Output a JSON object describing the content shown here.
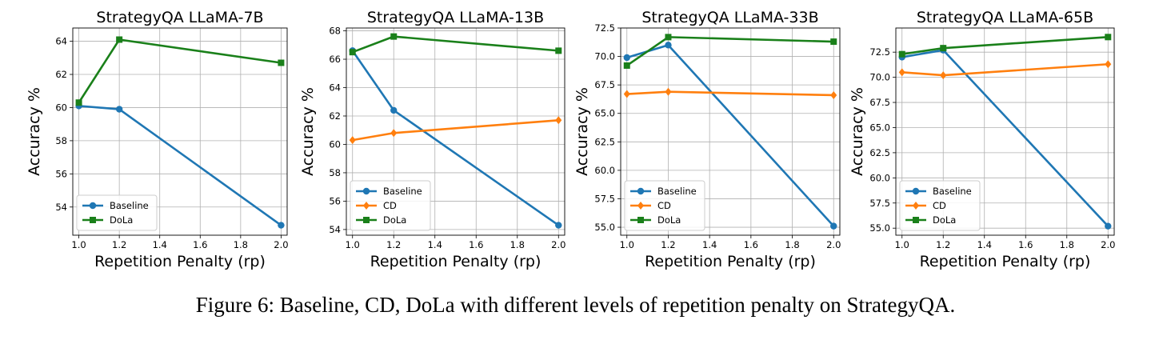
{
  "caption": "Figure 6: Baseline, CD, DoLa with different levels of repetition penalty on StrategyQA.",
  "colors": {
    "Baseline": "#1f77b4",
    "CD": "#ff7f0e",
    "DoLa": "#1a801a"
  },
  "markers": {
    "Baseline": "circle",
    "CD": "diamond",
    "DoLa": "square"
  },
  "chart_data": [
    {
      "type": "line",
      "title": "StrategyQA LLaMA-7B",
      "xlabel": "Repetition Penalty (rp)",
      "ylabel": "Accuracy %",
      "x": [
        1.0,
        1.2,
        2.0
      ],
      "xticks": [
        "1.0",
        "1.2",
        "1.4",
        "1.6",
        "1.8",
        "2.0"
      ],
      "yticks": [
        "54",
        "56",
        "58",
        "60",
        "62",
        "64"
      ],
      "xlim": [
        0.97,
        2.03
      ],
      "ylim": [
        52.3,
        64.8
      ],
      "grid": true,
      "legend_position": "lower-left",
      "series": [
        {
          "name": "Baseline",
          "values": [
            60.1,
            59.9,
            52.9
          ]
        },
        {
          "name": "DoLa",
          "values": [
            60.3,
            64.1,
            62.7
          ]
        }
      ]
    },
    {
      "type": "line",
      "title": "StrategyQA LLaMA-13B",
      "xlabel": "Repetition Penalty (rp)",
      "ylabel": "Accuracy %",
      "x": [
        1.0,
        1.2,
        2.0
      ],
      "xticks": [
        "1.0",
        "1.2",
        "1.4",
        "1.6",
        "1.8",
        "2.0"
      ],
      "yticks": [
        "54",
        "56",
        "58",
        "60",
        "62",
        "64",
        "66",
        "68"
      ],
      "xlim": [
        0.97,
        2.03
      ],
      "ylim": [
        53.6,
        68.2
      ],
      "grid": true,
      "legend_position": "lower-left",
      "series": [
        {
          "name": "Baseline",
          "values": [
            66.6,
            62.4,
            54.3
          ]
        },
        {
          "name": "CD",
          "values": [
            60.3,
            60.8,
            61.7
          ]
        },
        {
          "name": "DoLa",
          "values": [
            66.5,
            67.6,
            66.6
          ]
        }
      ]
    },
    {
      "type": "line",
      "title": "StrategyQA LLaMA-33B",
      "xlabel": "Repetition Penalty (rp)",
      "ylabel": "Accuracy %",
      "x": [
        1.0,
        1.2,
        2.0
      ],
      "xticks": [
        "1.0",
        "1.2",
        "1.4",
        "1.6",
        "1.8",
        "2.0"
      ],
      "yticks": [
        "55.0",
        "57.5",
        "60.0",
        "62.5",
        "65.0",
        "67.5",
        "70.0",
        "72.5"
      ],
      "xlim": [
        0.97,
        2.03
      ],
      "ylim": [
        54.3,
        72.5
      ],
      "grid": true,
      "legend_position": "lower-left",
      "series": [
        {
          "name": "Baseline",
          "values": [
            69.9,
            71.0,
            55.1
          ]
        },
        {
          "name": "CD",
          "values": [
            66.7,
            66.9,
            66.6
          ]
        },
        {
          "name": "DoLa",
          "values": [
            69.2,
            71.7,
            71.3
          ]
        }
      ]
    },
    {
      "type": "line",
      "title": "StrategyQA LLaMA-65B",
      "xlabel": "Repetition Penalty (rp)",
      "ylabel": "Accuracy %",
      "x": [
        1.0,
        1.2,
        2.0
      ],
      "xticks": [
        "1.0",
        "1.2",
        "1.4",
        "1.6",
        "1.8",
        "2.0"
      ],
      "yticks": [
        "55.0",
        "57.5",
        "60.0",
        "62.5",
        "65.0",
        "67.5",
        "70.0",
        "72.5"
      ],
      "xlim": [
        0.97,
        2.03
      ],
      "ylim": [
        54.3,
        74.9
      ],
      "grid": true,
      "legend_position": "lower-left",
      "series": [
        {
          "name": "Baseline",
          "values": [
            72.0,
            72.7,
            55.2
          ]
        },
        {
          "name": "CD",
          "values": [
            70.5,
            70.2,
            71.3
          ]
        },
        {
          "name": "DoLa",
          "values": [
            72.3,
            72.9,
            74.0
          ]
        }
      ]
    }
  ]
}
